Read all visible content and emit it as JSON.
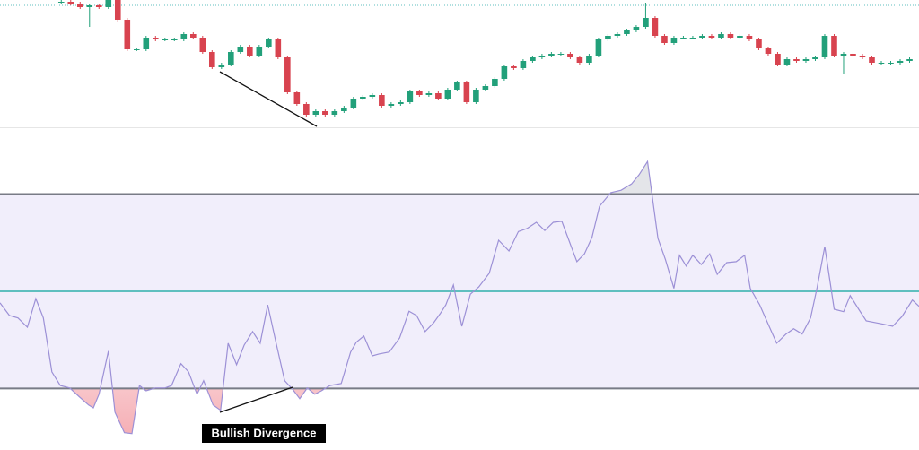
{
  "chart_data": [
    {
      "type": "candlestick",
      "open": [
        139,
        140,
        138,
        134,
        136,
        134,
        142,
        120,
        87,
        87,
        100,
        98,
        98,
        98,
        104,
        100,
        84,
        67,
        70,
        84,
        90,
        80,
        90,
        98,
        78,
        39,
        26,
        14,
        18,
        14,
        18,
        22,
        32,
        34,
        36,
        24,
        26,
        28,
        40,
        36,
        38,
        32,
        42,
        50,
        28,
        42,
        46,
        54,
        68,
        66,
        74,
        78,
        80,
        82,
        82,
        78,
        72,
        80,
        98,
        102,
        104,
        108,
        112,
        122,
        102,
        94,
        100,
        100,
        100,
        102,
        100,
        104,
        100,
        102,
        98,
        88,
        82,
        70,
        76,
        74,
        76,
        78,
        102,
        80,
        82,
        80,
        78,
        72,
        72,
        72,
        74
      ],
      "high": [
        142,
        142,
        140,
        138,
        138,
        144,
        144,
        122,
        89,
        102,
        102,
        100,
        100,
        106,
        106,
        102,
        86,
        72,
        86,
        92,
        92,
        92,
        100,
        100,
        80,
        41,
        28,
        20,
        20,
        20,
        24,
        34,
        36,
        38,
        38,
        28,
        30,
        42,
        42,
        40,
        40,
        44,
        52,
        52,
        44,
        48,
        56,
        70,
        70,
        76,
        80,
        82,
        84,
        84,
        84,
        80,
        82,
        100,
        104,
        106,
        110,
        114,
        139,
        124,
        104,
        102,
        102,
        102,
        104,
        104,
        106,
        106,
        104,
        104,
        100,
        90,
        84,
        78,
        78,
        78,
        80,
        104,
        104,
        84,
        84,
        82,
        80,
        74,
        74,
        76,
        78
      ],
      "low": [
        137,
        136,
        132,
        112,
        132,
        132,
        118,
        85,
        85,
        85,
        96,
        96,
        96,
        96,
        98,
        82,
        65,
        65,
        68,
        82,
        78,
        78,
        88,
        76,
        37,
        24,
        12,
        12,
        12,
        12,
        16,
        20,
        30,
        32,
        22,
        22,
        24,
        26,
        34,
        34,
        30,
        30,
        40,
        26,
        26,
        40,
        44,
        52,
        64,
        64,
        72,
        76,
        78,
        80,
        76,
        70,
        70,
        78,
        96,
        100,
        102,
        106,
        110,
        100,
        92,
        92,
        98,
        98,
        98,
        98,
        98,
        98,
        98,
        96,
        86,
        80,
        68,
        68,
        72,
        72,
        74,
        76,
        78,
        60,
        78,
        76,
        70,
        70,
        70,
        70,
        72
      ],
      "close": [
        140,
        138,
        134,
        136,
        134,
        142,
        120,
        87,
        87,
        100,
        98,
        98,
        98,
        104,
        100,
        84,
        67,
        70,
        84,
        90,
        80,
        90,
        98,
        78,
        39,
        26,
        14,
        18,
        14,
        18,
        22,
        32,
        34,
        36,
        24,
        26,
        28,
        40,
        36,
        38,
        32,
        42,
        50,
        28,
        42,
        46,
        54,
        68,
        66,
        74,
        78,
        80,
        82,
        82,
        78,
        72,
        80,
        98,
        102,
        104,
        108,
        112,
        122,
        102,
        94,
        100,
        100,
        100,
        102,
        100,
        104,
        100,
        102,
        98,
        88,
        82,
        70,
        76,
        74,
        76,
        78,
        102,
        80,
        82,
        80,
        78,
        72,
        72,
        72,
        74,
        76
      ],
      "xlim": [
        -6.5,
        91
      ],
      "ylim": [
        0,
        142
      ],
      "up_color": "#22a07a",
      "down_color": "#d8434f"
    },
    {
      "type": "line",
      "x": [
        -6.5,
        -5.5,
        -4.6,
        -3.6,
        -2.7,
        -1.9,
        -1.0,
        -0.1,
        0.9,
        1.9,
        2.9,
        3.4,
        4.0,
        5.0,
        5.7,
        6.7,
        7.5,
        8.3,
        9.0,
        10.0,
        11.0,
        11.7,
        12.7,
        13.5,
        14.4,
        15.1,
        16.1,
        16.9,
        17.7,
        18.6,
        19.4,
        20.3,
        21.1,
        21.9,
        22.8,
        23.7,
        24.6,
        25.3,
        26.1,
        26.9,
        27.6,
        28.5,
        29.7,
        30.7,
        31.3,
        32.1,
        33.0,
        33.7,
        34.8,
        35.9,
        36.9,
        37.7,
        38.6,
        39.5,
        40.2,
        40.8,
        41.6,
        42.5,
        43.4,
        44.3,
        45.4,
        46.4,
        47.5,
        48.5,
        49.4,
        50.4,
        51.3,
        52.2,
        53.1,
        54.2,
        54.7,
        55.5,
        56.3,
        57.1,
        58.3,
        59.4,
        60.5,
        61.3,
        62.2,
        63.3,
        64.1,
        65.0,
        65.6,
        66.3,
        67.0,
        67.9,
        68.8,
        69.6,
        70.6,
        71.6,
        72.5,
        73.1,
        74.1,
        75.0,
        75.9,
        76.9,
        77.7,
        78.6,
        79.5,
        80.2,
        81.0,
        82.0,
        83.0,
        83.7,
        84.6,
        85.4,
        86.5,
        87.3,
        88.2,
        89.2,
        90.3,
        91.0
      ],
      "values": [
        47.6,
        45.0,
        44.5,
        42.6,
        48.5,
        44.5,
        33.4,
        30.6,
        30.1,
        28.3,
        26.6,
        26.0,
        28.8,
        37.7,
        25.1,
        20.9,
        20.7,
        30.6,
        29.5,
        30.1,
        30.1,
        30.6,
        35.1,
        33.4,
        28.8,
        31.6,
        26.6,
        25.5,
        39.3,
        34.9,
        38.9,
        41.7,
        39.3,
        47.2,
        39.3,
        31.6,
        29.7,
        27.9,
        30.1,
        28.8,
        29.5,
        30.6,
        31.0,
        37.5,
        39.5,
        40.8,
        36.7,
        37.1,
        37.5,
        40.4,
        45.9,
        45.0,
        41.7,
        43.5,
        45.4,
        47.2,
        51.3,
        42.8,
        49.4,
        50.9,
        53.7,
        60.5,
        58.3,
        62.3,
        62.9,
        64.2,
        62.5,
        64.2,
        64.4,
        58.7,
        56.1,
        57.7,
        61.1,
        67.5,
        70.3,
        70.8,
        72.1,
        74.0,
        76.7,
        60.9,
        56.5,
        50.6,
        57.4,
        55.2,
        57.4,
        55.5,
        57.7,
        53.5,
        55.9,
        56.1,
        57.4,
        50.6,
        47.2,
        43.2,
        39.3,
        41.2,
        42.3,
        41.2,
        44.5,
        50.9,
        59.2,
        46.3,
        45.8,
        49.1,
        46.3,
        43.9,
        43.5,
        43.2,
        42.8,
        44.8,
        48.2,
        46.9
      ],
      "color": "#9c90d6",
      "xlim": [
        -6.5,
        91
      ],
      "ylim": [
        17.7,
        83.2
      ],
      "levels": [
        70,
        50,
        30
      ],
      "level_colors": [
        "#787b86",
        "#5fbfbf",
        "#787b86"
      ],
      "band_color": "#f1eefb",
      "annotation": "Bullish Divergence"
    }
  ]
}
